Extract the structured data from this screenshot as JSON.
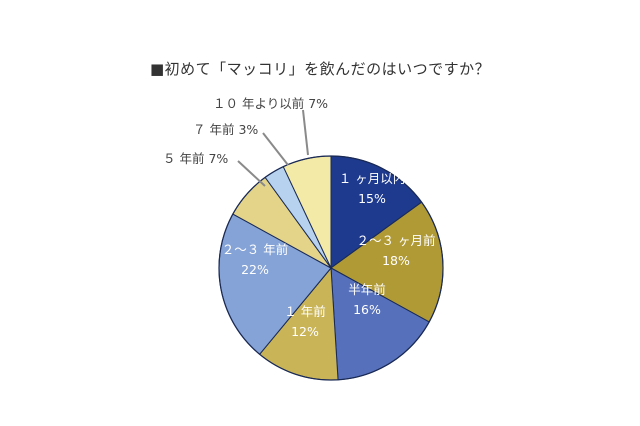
{
  "title": "■初めて「マッコリ」を飲んだのはいつですか？",
  "chart_data": {
    "type": "pie",
    "title": "■初めて「マッコリ」を飲んだのはいつですか？",
    "start_angle_deg": 0,
    "direction": "clockwise",
    "categories": [
      "１ヶ月以内",
      "２～３ヶ月前",
      "半年前",
      "１年前",
      "２～３年前",
      "５年前",
      "７年前",
      "１０年より以前"
    ],
    "values": [
      15,
      18,
      16,
      12,
      22,
      7,
      3,
      7
    ],
    "unit": "%",
    "colors": [
      "#1d3a8f",
      "#b09a35",
      "#5670bb",
      "#c9b457",
      "#85a3d6",
      "#e3d48a",
      "#b6d2ee",
      "#f3eaa8"
    ],
    "label_text_colors": [
      "#ffffff",
      "#ffffff",
      "#ffffff",
      "#ffffff",
      "#ffffff",
      "#444444",
      "#444444",
      "#444444"
    ],
    "slices": [
      {
        "label": "１ ヶ月以内",
        "pct": "15%",
        "inside": true
      },
      {
        "label": "２～３ ヶ月前",
        "pct": "18%",
        "inside": true
      },
      {
        "label": "半年前",
        "pct": "16%",
        "inside": true
      },
      {
        "label": "１ 年前",
        "pct": "12%",
        "inside": true
      },
      {
        "label": "２～３ 年前",
        "pct": "22%",
        "inside": true
      },
      {
        "label": "５ 年前 7%",
        "pct": "",
        "inside": false
      },
      {
        "label": "７ 年前 3%",
        "pct": "",
        "inside": false
      },
      {
        "label": "１０ 年より以前 7%",
        "pct": "",
        "inside": false
      }
    ],
    "legend": "none"
  }
}
